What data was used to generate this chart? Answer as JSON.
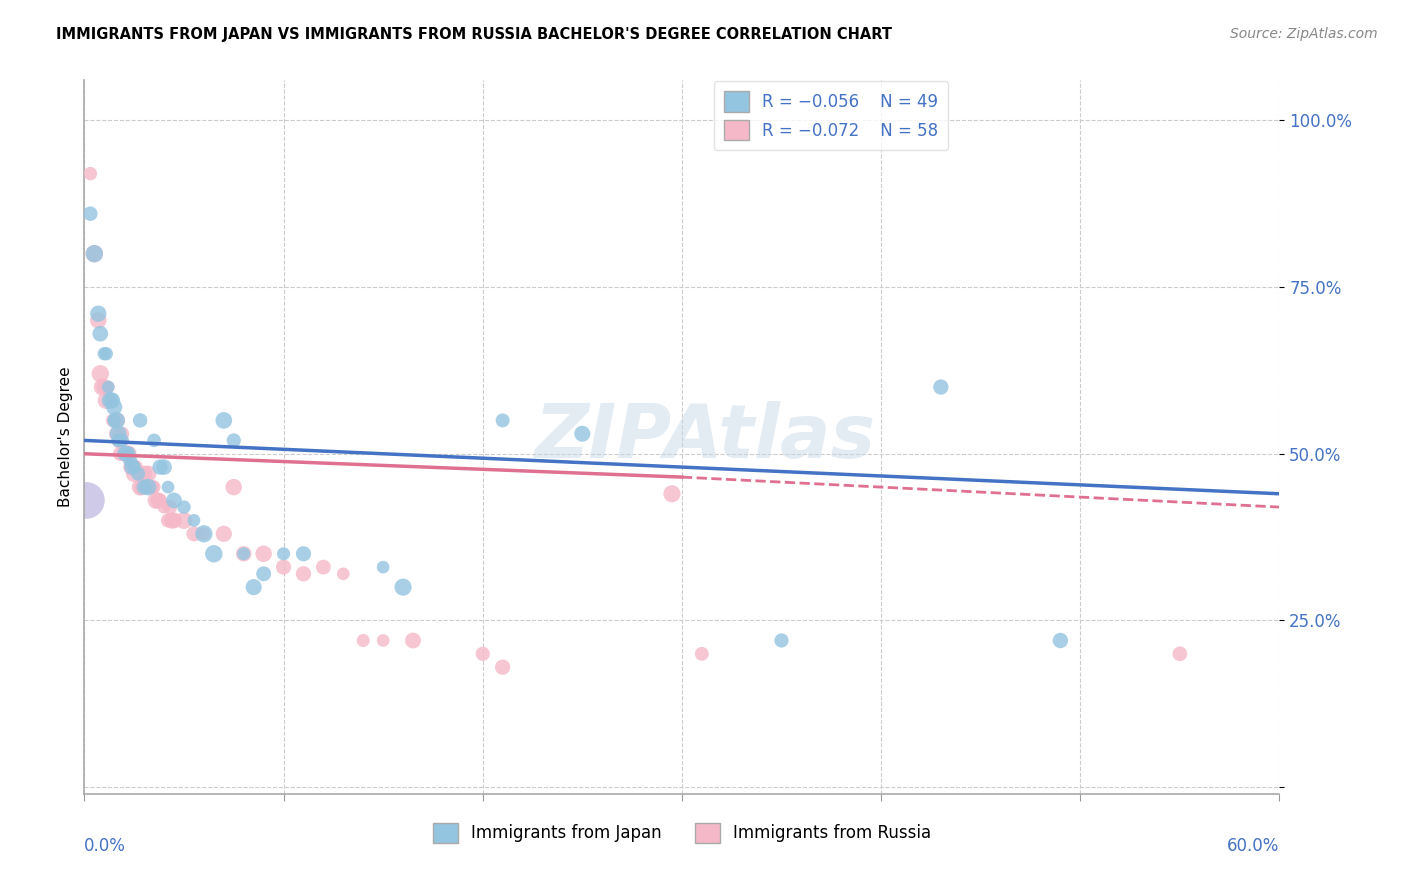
{
  "title": "IMMIGRANTS FROM JAPAN VS IMMIGRANTS FROM RUSSIA BACHELOR'S DEGREE CORRELATION CHART",
  "source": "Source: ZipAtlas.com",
  "ylabel": "Bachelor's Degree",
  "xlim": [
    0.0,
    0.6
  ],
  "ylim": [
    -0.01,
    1.06
  ],
  "japan_color": "#93c4e0",
  "russia_color": "#f5b8c8",
  "japan_line_color": "#4472c4",
  "russia_line_color": "#e07090",
  "russia_line_dash_start": 0.3,
  "legend_R_japan": "R = -0.056",
  "legend_N_japan": "N = 49",
  "legend_R_russia": "R = -0.072",
  "legend_N_russia": "N = 58",
  "watermark": "ZIPAtlas",
  "japan_points": [
    [
      0.003,
      0.86
    ],
    [
      0.005,
      0.8
    ],
    [
      0.007,
      0.71
    ],
    [
      0.008,
      0.68
    ],
    [
      0.01,
      0.65
    ],
    [
      0.011,
      0.65
    ],
    [
      0.012,
      0.6
    ],
    [
      0.013,
      0.58
    ],
    [
      0.014,
      0.58
    ],
    [
      0.015,
      0.57
    ],
    [
      0.015,
      0.55
    ],
    [
      0.016,
      0.55
    ],
    [
      0.017,
      0.53
    ],
    [
      0.017,
      0.52
    ],
    [
      0.018,
      0.52
    ],
    [
      0.019,
      0.52
    ],
    [
      0.02,
      0.5
    ],
    [
      0.021,
      0.5
    ],
    [
      0.022,
      0.5
    ],
    [
      0.023,
      0.49
    ],
    [
      0.024,
      0.48
    ],
    [
      0.025,
      0.48
    ],
    [
      0.027,
      0.47
    ],
    [
      0.028,
      0.55
    ],
    [
      0.03,
      0.45
    ],
    [
      0.032,
      0.45
    ],
    [
      0.035,
      0.52
    ],
    [
      0.038,
      0.48
    ],
    [
      0.04,
      0.48
    ],
    [
      0.042,
      0.45
    ],
    [
      0.045,
      0.43
    ],
    [
      0.05,
      0.42
    ],
    [
      0.055,
      0.4
    ],
    [
      0.06,
      0.38
    ],
    [
      0.065,
      0.35
    ],
    [
      0.07,
      0.55
    ],
    [
      0.075,
      0.52
    ],
    [
      0.08,
      0.35
    ],
    [
      0.085,
      0.3
    ],
    [
      0.09,
      0.32
    ],
    [
      0.1,
      0.35
    ],
    [
      0.11,
      0.35
    ],
    [
      0.15,
      0.33
    ],
    [
      0.16,
      0.3
    ],
    [
      0.21,
      0.55
    ],
    [
      0.25,
      0.53
    ],
    [
      0.35,
      0.22
    ],
    [
      0.43,
      0.6
    ],
    [
      0.49,
      0.22
    ]
  ],
  "russia_points": [
    [
      0.003,
      0.92
    ],
    [
      0.005,
      0.8
    ],
    [
      0.007,
      0.7
    ],
    [
      0.008,
      0.62
    ],
    [
      0.009,
      0.6
    ],
    [
      0.01,
      0.6
    ],
    [
      0.011,
      0.58
    ],
    [
      0.012,
      0.6
    ],
    [
      0.013,
      0.58
    ],
    [
      0.014,
      0.55
    ],
    [
      0.015,
      0.55
    ],
    [
      0.016,
      0.53
    ],
    [
      0.017,
      0.55
    ],
    [
      0.018,
      0.52
    ],
    [
      0.018,
      0.5
    ],
    [
      0.019,
      0.53
    ],
    [
      0.02,
      0.5
    ],
    [
      0.021,
      0.5
    ],
    [
      0.022,
      0.5
    ],
    [
      0.023,
      0.48
    ],
    [
      0.024,
      0.48
    ],
    [
      0.025,
      0.47
    ],
    [
      0.026,
      0.48
    ],
    [
      0.027,
      0.47
    ],
    [
      0.028,
      0.45
    ],
    [
      0.029,
      0.45
    ],
    [
      0.03,
      0.47
    ],
    [
      0.032,
      0.47
    ],
    [
      0.033,
      0.45
    ],
    [
      0.034,
      0.45
    ],
    [
      0.035,
      0.45
    ],
    [
      0.036,
      0.43
    ],
    [
      0.037,
      0.43
    ],
    [
      0.038,
      0.43
    ],
    [
      0.04,
      0.42
    ],
    [
      0.042,
      0.4
    ],
    [
      0.043,
      0.42
    ],
    [
      0.044,
      0.4
    ],
    [
      0.045,
      0.4
    ],
    [
      0.05,
      0.4
    ],
    [
      0.055,
      0.38
    ],
    [
      0.06,
      0.38
    ],
    [
      0.07,
      0.38
    ],
    [
      0.075,
      0.45
    ],
    [
      0.08,
      0.35
    ],
    [
      0.09,
      0.35
    ],
    [
      0.1,
      0.33
    ],
    [
      0.11,
      0.32
    ],
    [
      0.12,
      0.33
    ],
    [
      0.13,
      0.32
    ],
    [
      0.14,
      0.22
    ],
    [
      0.15,
      0.22
    ],
    [
      0.165,
      0.22
    ],
    [
      0.2,
      0.2
    ],
    [
      0.21,
      0.18
    ],
    [
      0.295,
      0.44
    ],
    [
      0.31,
      0.2
    ],
    [
      0.55,
      0.2
    ]
  ],
  "japan_large_bubble": [
    0.001,
    0.43
  ],
  "japan_large_bubble_size": 700
}
